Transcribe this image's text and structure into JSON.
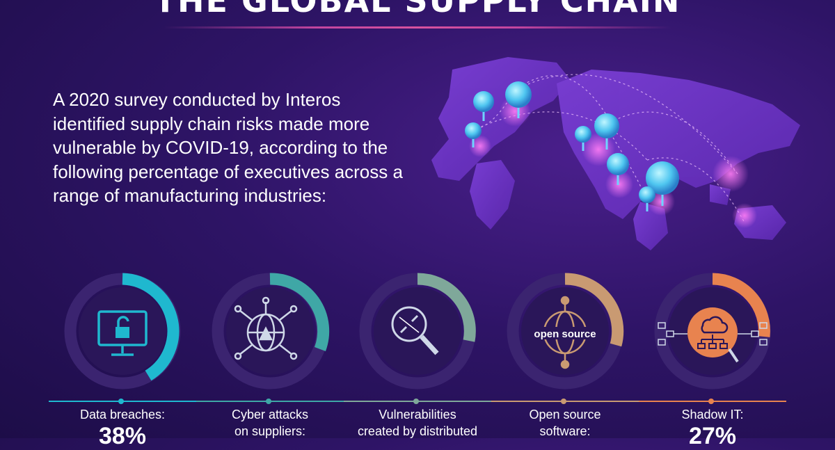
{
  "header": {
    "title": "THE GLOBAL SUPPLY CHAIN"
  },
  "intro": {
    "text": "A 2020 survey conducted by Interos identified supply chain risks made more vulnerable by COVID-19, according to the following percentage of executives across a range of manufacturing industries:"
  },
  "stats": [
    {
      "label": "Data breaches:",
      "value": "38%",
      "color": "#1fb8cf",
      "icon": "unlocked-monitor-icon"
    },
    {
      "label": "Cyber attacks\non suppliers:",
      "value": "",
      "color": "#3fa7a6",
      "icon": "globe-alert-icon"
    },
    {
      "label": "Vulnerabilities\ncreated by distributed",
      "value": "",
      "color": "#7fa89a",
      "icon": "broken-link-magnifier-icon"
    },
    {
      "label": "Open source\nsoftware:",
      "value": "",
      "color": "#c99a72",
      "icon": "open-source-gear-globe-icon",
      "icon_text": "open source"
    },
    {
      "label": "Shadow IT:",
      "value": "27%",
      "color": "#e8834f",
      "icon": "cloud-network-icon"
    }
  ]
}
